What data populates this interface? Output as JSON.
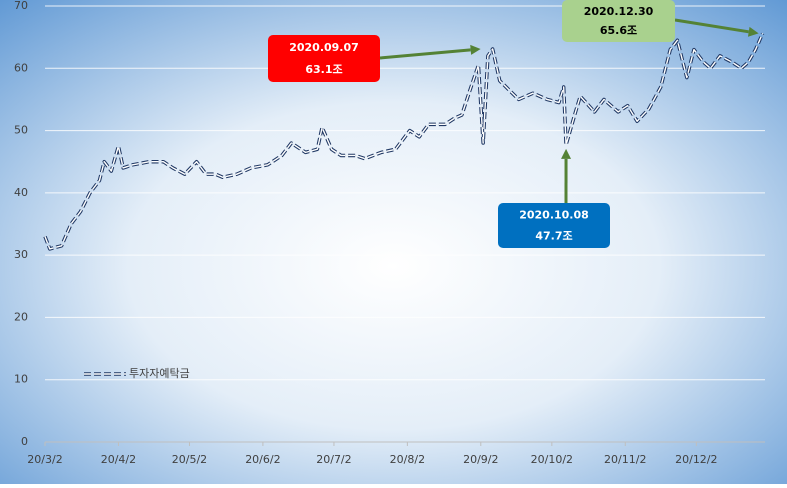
{
  "chart_data": {
    "type": "line",
    "x": [
      "20/3/2",
      "20/3/4",
      "20/3/9",
      "20/3/13",
      "20/3/17",
      "20/3/21",
      "20/3/25",
      "20/3/27",
      "20/3/30",
      "20/4/2",
      "20/4/4",
      "20/4/8",
      "20/4/15",
      "20/4/21",
      "20/4/25",
      "20/4/30",
      "20/5/5",
      "20/5/9",
      "20/5/13",
      "20/5/16",
      "20/5/22",
      "20/5/28",
      "20/6/4",
      "20/6/10",
      "20/6/14",
      "20/6/20",
      "20/6/25",
      "20/6/27",
      "20/7/1",
      "20/7/5",
      "20/7/11",
      "20/7/15",
      "20/7/22",
      "20/7/28",
      "20/8/3",
      "20/8/7",
      "20/8/11",
      "20/8/18",
      "20/8/22",
      "20/8/25",
      "20/8/28",
      "20/9/1",
      "20/9/3",
      "20/9/5",
      "20/9/7",
      "20/9/10",
      "20/9/14",
      "20/9/18",
      "20/9/24",
      "20/9/30",
      "20/10/5",
      "20/10/7",
      "20/10/8",
      "20/10/12",
      "20/10/14",
      "20/10/20",
      "20/10/24",
      "20/10/30",
      "20/11/3",
      "20/11/7",
      "20/11/12",
      "20/11/17",
      "20/11/21",
      "20/11/24",
      "20/11/28",
      "20/12/1",
      "20/12/5",
      "20/12/8",
      "20/12/12",
      "20/12/17",
      "20/12/21",
      "20/12/24",
      "20/12/27",
      "20/12/30"
    ],
    "series": [
      {
        "name": "투자자예탁금",
        "color": "#203864",
        "values": [
          33,
          31,
          31.5,
          35,
          37,
          40,
          42,
          45,
          43.5,
          47.5,
          44,
          44.5,
          45,
          45,
          44,
          43,
          45,
          43,
          43,
          42.5,
          43,
          44,
          44.5,
          46,
          48,
          46.5,
          47,
          50.5,
          47,
          46,
          46,
          45.5,
          46.5,
          47,
          50,
          49,
          51,
          51,
          52,
          52.5,
          56,
          60.5,
          48,
          62,
          63.1,
          58,
          56.5,
          55,
          56,
          55,
          54.5,
          57,
          47.7,
          53,
          55.5,
          53,
          55,
          53,
          54,
          51.5,
          53.5,
          57,
          63,
          64.5,
          58.5,
          63,
          61,
          60,
          62,
          61,
          60,
          61,
          63,
          65.6
        ]
      }
    ],
    "xlim": [
      "20/3/2",
      "20/12/31"
    ],
    "xticks": [
      "20/3/2",
      "20/4/2",
      "20/5/2",
      "20/6/2",
      "20/7/2",
      "20/8/2",
      "20/9/2",
      "20/10/2",
      "20/11/2",
      "20/12/2"
    ],
    "ylim": [
      0,
      70
    ],
    "yticks": [
      0,
      10,
      20,
      30,
      40,
      50,
      60,
      70
    ],
    "grid": true,
    "annotations": [
      {
        "date": "2020.09.07",
        "label": "63.1조",
        "x": "20/9/7",
        "y": 63.1,
        "color": "#ff0000",
        "text_color": "#ffffff"
      },
      {
        "date": "2020.10.08",
        "label": "47.7조",
        "x": "20/10/8",
        "y": 47.7,
        "color": "#0070c0",
        "text_color": "#ffffff"
      },
      {
        "date": "2020.12.30",
        "label": "65.6조",
        "x": "20/12/30",
        "y": 65.6,
        "color": "#a9d18e",
        "text_color": "#000000"
      }
    ],
    "arrow_color": "#548235"
  }
}
